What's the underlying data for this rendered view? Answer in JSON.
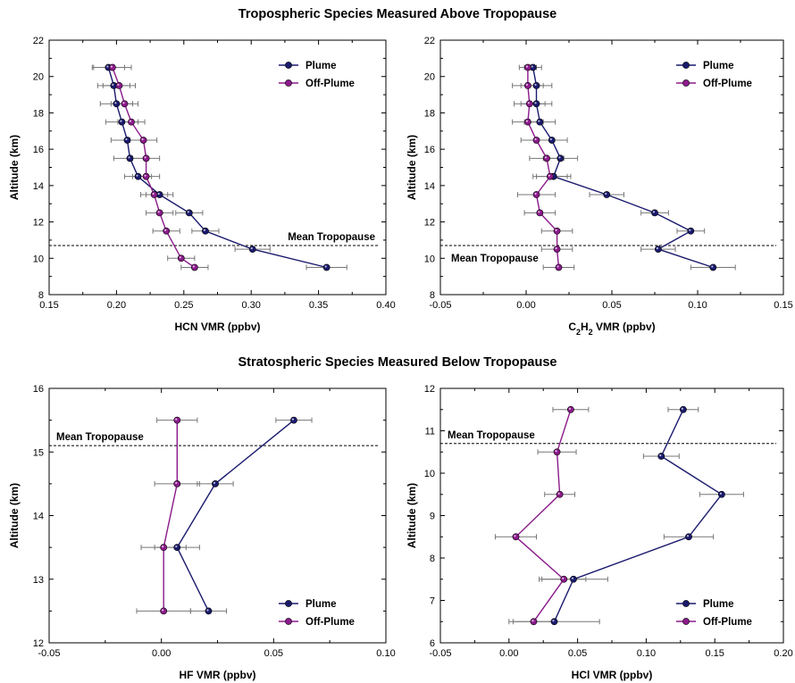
{
  "titles": {
    "top": "Tropospheric Species Measured Above Tropopause",
    "bottom": "Stratospheric Species Measured Below Tropopause"
  },
  "colors": {
    "plume": "#1a1a6e",
    "off_plume": "#8b1a8b",
    "error_bar": "#777777"
  },
  "chart_data": [
    {
      "type": "line",
      "xlabel": "HCN VMR (ppbv)",
      "ylabel": "Altitude (km)",
      "xlim": [
        0.15,
        0.4
      ],
      "ylim": [
        8,
        22
      ],
      "xticks": [
        0.15,
        0.2,
        0.25,
        0.3,
        0.35,
        0.4
      ],
      "xtick_labels": [
        "0.15",
        "0.20",
        "0.25",
        "0.30",
        "0.35",
        "0.40"
      ],
      "yticks": [
        8,
        10,
        12,
        14,
        16,
        18,
        20,
        22
      ],
      "ytick_labels": [
        "8",
        "10",
        "12",
        "14",
        "16",
        "18",
        "20",
        "22"
      ],
      "tropopause": {
        "altitude": 10.7,
        "label": "Mean Tropopause",
        "label_pos": "above-right"
      },
      "legend": {
        "position": "top-right"
      },
      "series": [
        {
          "name": "Plume",
          "color": "#1a1a6e",
          "legend_order": 0,
          "points": [
            {
              "x": 0.356,
              "y": 9.5,
              "xerr": 0.015
            },
            {
              "x": 0.301,
              "y": 10.5,
              "xerr": 0.013
            },
            {
              "x": 0.266,
              "y": 11.5,
              "xerr": 0.01
            },
            {
              "x": 0.254,
              "y": 12.5,
              "xerr": 0.01
            },
            {
              "x": 0.232,
              "y": 13.5,
              "xerr": 0.01
            },
            {
              "x": 0.216,
              "y": 14.5,
              "xerr": 0.01
            },
            {
              "x": 0.21,
              "y": 15.5,
              "xerr": 0.012
            },
            {
              "x": 0.208,
              "y": 16.5,
              "xerr": 0.012
            },
            {
              "x": 0.204,
              "y": 17.5,
              "xerr": 0.012
            },
            {
              "x": 0.2,
              "y": 18.5,
              "xerr": 0.012
            },
            {
              "x": 0.198,
              "y": 19.5,
              "xerr": 0.012
            },
            {
              "x": 0.194,
              "y": 20.5,
              "xerr": 0.012
            }
          ]
        },
        {
          "name": "Off-Plume",
          "color": "#8b1a8b",
          "legend_order": 1,
          "points": [
            {
              "x": 0.258,
              "y": 9.5,
              "xerr": 0.01
            },
            {
              "x": 0.248,
              "y": 10.0,
              "xerr": 0.01
            },
            {
              "x": 0.237,
              "y": 11.5,
              "xerr": 0.01
            },
            {
              "x": 0.232,
              "y": 12.5,
              "xerr": 0.01
            },
            {
              "x": 0.228,
              "y": 13.5,
              "xerr": 0.01
            },
            {
              "x": 0.222,
              "y": 14.5,
              "xerr": 0.01
            },
            {
              "x": 0.222,
              "y": 15.5,
              "xerr": 0.01
            },
            {
              "x": 0.22,
              "y": 16.5,
              "xerr": 0.01
            },
            {
              "x": 0.211,
              "y": 17.5,
              "xerr": 0.01
            },
            {
              "x": 0.206,
              "y": 18.5,
              "xerr": 0.01
            },
            {
              "x": 0.202,
              "y": 19.5,
              "xerr": 0.012
            },
            {
              "x": 0.197,
              "y": 20.5,
              "xerr": 0.014
            }
          ]
        }
      ]
    },
    {
      "type": "line",
      "xlabel": "C2H2 VMR (ppbv)",
      "ylabel": "Altitude (km)",
      "xlim": [
        -0.05,
        0.15
      ],
      "ylim": [
        8,
        22
      ],
      "xticks": [
        -0.05,
        0.0,
        0.05,
        0.1,
        0.15
      ],
      "xtick_labels": [
        "-0.05",
        "0.00",
        "0.05",
        "0.10",
        "0.15"
      ],
      "yticks": [
        8,
        10,
        12,
        14,
        16,
        18,
        20,
        22
      ],
      "ytick_labels": [
        "8",
        "10",
        "12",
        "14",
        "16",
        "18",
        "20",
        "22"
      ],
      "tropopause": {
        "altitude": 10.7,
        "label": "Mean Tropopause",
        "label_pos": "below-left"
      },
      "legend": {
        "position": "top-right"
      },
      "series": [
        {
          "name": "Plume",
          "color": "#1a1a6e",
          "legend_order": 0,
          "points": [
            {
              "x": 0.109,
              "y": 9.5,
              "xerr": 0.013
            },
            {
              "x": 0.077,
              "y": 10.5,
              "xerr": 0.01
            },
            {
              "x": 0.096,
              "y": 11.5,
              "xerr": 0.008
            },
            {
              "x": 0.075,
              "y": 12.5,
              "xerr": 0.008
            },
            {
              "x": 0.047,
              "y": 13.5,
              "xerr": 0.01
            },
            {
              "x": 0.016,
              "y": 14.5,
              "xerr": 0.01
            },
            {
              "x": 0.02,
              "y": 15.5,
              "xerr": 0.01
            },
            {
              "x": 0.015,
              "y": 16.5,
              "xerr": 0.009
            },
            {
              "x": 0.008,
              "y": 17.5,
              "xerr": 0.009
            },
            {
              "x": 0.006,
              "y": 18.5,
              "xerr": 0.009
            },
            {
              "x": 0.006,
              "y": 19.5,
              "xerr": 0.009
            },
            {
              "x": 0.004,
              "y": 20.5,
              "xerr": 0.005
            }
          ]
        },
        {
          "name": "Off-Plume",
          "color": "#8b1a8b",
          "legend_order": 1,
          "points": [
            {
              "x": 0.019,
              "y": 9.5,
              "xerr": 0.009
            },
            {
              "x": 0.018,
              "y": 10.5,
              "xerr": 0.009
            },
            {
              "x": 0.018,
              "y": 11.5,
              "xerr": 0.009
            },
            {
              "x": 0.008,
              "y": 12.5,
              "xerr": 0.009
            },
            {
              "x": 0.006,
              "y": 13.5,
              "xerr": 0.011
            },
            {
              "x": 0.014,
              "y": 14.5,
              "xerr": 0.01
            },
            {
              "x": 0.012,
              "y": 15.5,
              "xerr": 0.01
            },
            {
              "x": 0.006,
              "y": 16.5,
              "xerr": 0.009
            },
            {
              "x": 0.001,
              "y": 17.5,
              "xerr": 0.009
            },
            {
              "x": 0.002,
              "y": 18.5,
              "xerr": 0.009
            },
            {
              "x": 0.001,
              "y": 19.5,
              "xerr": 0.009
            },
            {
              "x": 0.001,
              "y": 20.5,
              "xerr": 0.005
            }
          ]
        }
      ]
    },
    {
      "type": "line",
      "xlabel": "HF VMR (ppbv)",
      "ylabel": "Altitude (km)",
      "xlim": [
        -0.05,
        0.1
      ],
      "ylim": [
        12,
        16
      ],
      "xticks": [
        -0.05,
        0.0,
        0.05,
        0.1
      ],
      "xtick_labels": [
        "-0.05",
        "0.00",
        "0.05",
        "0.10"
      ],
      "yticks": [
        12,
        13,
        14,
        15,
        16
      ],
      "ytick_labels": [
        "12",
        "13",
        "14",
        "15",
        "16"
      ],
      "tropopause": {
        "altitude": 15.1,
        "label": "Mean Tropopause",
        "label_pos": "above-left"
      },
      "legend": {
        "position": "bottom-right"
      },
      "series": [
        {
          "name": "Plume",
          "color": "#1a1a6e",
          "legend_order": 0,
          "points": [
            {
              "x": 0.021,
              "y": 12.5,
              "xerr": 0.008
            },
            {
              "x": 0.007,
              "y": 13.5,
              "xerr": 0.01
            },
            {
              "x": 0.024,
              "y": 14.5,
              "xerr": 0.008
            },
            {
              "x": 0.059,
              "y": 15.5,
              "xerr": 0.008
            }
          ]
        },
        {
          "name": "Off-Plume",
          "color": "#8b1a8b",
          "legend_order": 1,
          "points": [
            {
              "x": 0.001,
              "y": 12.5,
              "xerr": 0.012
            },
            {
              "x": 0.001,
              "y": 13.5,
              "xerr": 0.01
            },
            {
              "x": 0.007,
              "y": 14.5,
              "xerr": 0.01
            },
            {
              "x": 0.007,
              "y": 15.5,
              "xerr": 0.009
            }
          ]
        }
      ]
    },
    {
      "type": "line",
      "xlabel": "HCl VMR (ppbv)",
      "ylabel": "Altitude (km)",
      "xlim": [
        -0.05,
        0.2
      ],
      "ylim": [
        6,
        12
      ],
      "xticks": [
        -0.05,
        0.0,
        0.05,
        0.1,
        0.15,
        0.2
      ],
      "xtick_labels": [
        "-0.05",
        "0.00",
        "0.05",
        "0.10",
        "0.15",
        "0.20"
      ],
      "yticks": [
        6,
        7,
        8,
        9,
        10,
        11,
        12
      ],
      "ytick_labels": [
        "6",
        "7",
        "8",
        "9",
        "10",
        "11",
        "12"
      ],
      "tropopause": {
        "altitude": 10.7,
        "label": "Mean Tropopause",
        "label_pos": "above-left"
      },
      "legend": {
        "position": "bottom-right"
      },
      "series": [
        {
          "name": "Plume",
          "color": "#1a1a6e",
          "legend_order": 0,
          "points": [
            {
              "x": 0.033,
              "y": 6.5,
              "xerr": 0.033
            },
            {
              "x": 0.047,
              "y": 7.5,
              "xerr": 0.025
            },
            {
              "x": 0.131,
              "y": 8.5,
              "xerr": 0.018
            },
            {
              "x": 0.155,
              "y": 9.5,
              "xerr": 0.016
            },
            {
              "x": 0.111,
              "y": 10.4,
              "xerr": 0.013
            },
            {
              "x": 0.127,
              "y": 11.5,
              "xerr": 0.011
            }
          ]
        },
        {
          "name": "Off-Plume",
          "color": "#8b1a8b",
          "legend_order": 1,
          "points": [
            {
              "x": 0.018,
              "y": 6.5,
              "xerr": 0.015
            },
            {
              "x": 0.04,
              "y": 7.5,
              "xerr": 0.016
            },
            {
              "x": 0.005,
              "y": 8.5,
              "xerr": 0.015
            },
            {
              "x": 0.037,
              "y": 9.5,
              "xerr": 0.011
            },
            {
              "x": 0.035,
              "y": 10.5,
              "xerr": 0.014
            },
            {
              "x": 0.045,
              "y": 11.5,
              "xerr": 0.013
            }
          ]
        }
      ]
    }
  ]
}
